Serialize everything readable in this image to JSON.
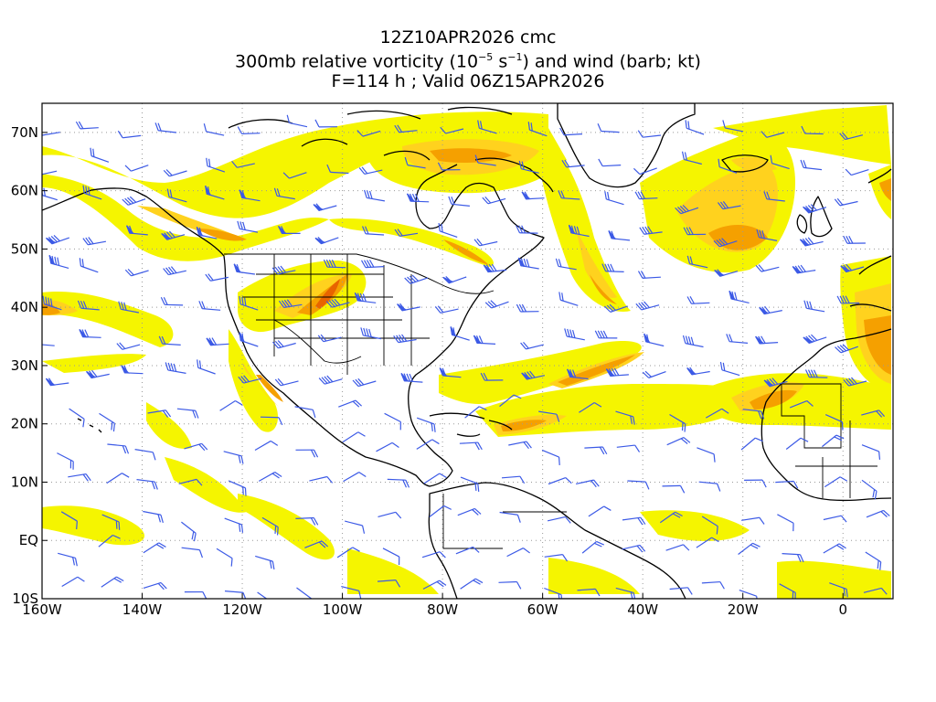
{
  "title": {
    "line1": "12Z10APR2026 cmc",
    "line2_a": "300mb relative vorticity (10",
    "line2_exp1": "−5",
    "line2_b": " s",
    "line2_exp2": "−1",
    "line2_c": ") and wind (barb; kt)",
    "line3": "F=114 h ; Valid 06Z15APR2026"
  },
  "map": {
    "lon_range": [
      -160,
      10
    ],
    "lat_range": [
      -10,
      75
    ],
    "x_ticks": [
      {
        "lon": -160,
        "label": "160W"
      },
      {
        "lon": -140,
        "label": "140W"
      },
      {
        "lon": -120,
        "label": "120W"
      },
      {
        "lon": -100,
        "label": "100W"
      },
      {
        "lon": -80,
        "label": "80W"
      },
      {
        "lon": -60,
        "label": "60W"
      },
      {
        "lon": -40,
        "label": "40W"
      },
      {
        "lon": -20,
        "label": "20W"
      },
      {
        "lon": 0,
        "label": "0"
      }
    ],
    "y_ticks": [
      {
        "lat": 70,
        "label": "70N"
      },
      {
        "lat": 60,
        "label": "60N"
      },
      {
        "lat": 50,
        "label": "50N"
      },
      {
        "lat": 40,
        "label": "40N"
      },
      {
        "lat": 30,
        "label": "30N"
      },
      {
        "lat": 20,
        "label": "20N"
      },
      {
        "lat": 10,
        "label": "10N"
      },
      {
        "lat": 0,
        "label": "EQ"
      },
      {
        "lat": -10,
        "label": "10S"
      }
    ],
    "colors": {
      "vort_low": "#f5f500",
      "vort_mid": "#ffd21e",
      "vort_high": "#f5a000",
      "vort_max": "#e86400",
      "barb": "#3c5ae6",
      "coast": "#000000",
      "grid": "#999999"
    }
  }
}
